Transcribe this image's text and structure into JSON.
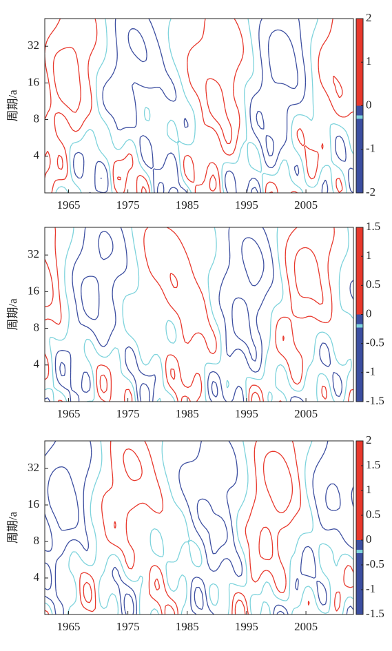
{
  "chart_data": [
    {
      "type": "contour",
      "ylabel": "周期/a",
      "xlim": [
        1961,
        2013
      ],
      "xticks": [
        1965,
        1975,
        1985,
        1995,
        2005
      ],
      "ylim": [
        2,
        54
      ],
      "yticks": [
        4,
        8,
        16,
        32
      ],
      "ylog": true,
      "clim": [
        -2,
        2
      ],
      "cticks": [
        -2,
        -1,
        0,
        1,
        2
      ],
      "colors": {
        "negative": "#3c4ea0",
        "zero": "#7dd3dc",
        "positive": "#e8382c"
      }
    },
    {
      "type": "contour",
      "ylabel": "周期/a",
      "xlim": [
        1961,
        2013
      ],
      "xticks": [
        1965,
        1975,
        1985,
        1995,
        2005
      ],
      "ylim": [
        2,
        54
      ],
      "yticks": [
        4,
        8,
        16,
        32
      ],
      "ylog": true,
      "clim": [
        -1.5,
        1.5
      ],
      "cticks": [
        -1.5,
        -1,
        -0.5,
        0,
        0.5,
        1,
        1.5
      ],
      "colors": {
        "negative": "#3c4ea0",
        "zero": "#7dd3dc",
        "positive": "#e8382c"
      }
    },
    {
      "type": "contour",
      "ylabel": "周期/a",
      "xlim": [
        1961,
        2013
      ],
      "xticks": [
        1965,
        1975,
        1985,
        1995,
        2005
      ],
      "ylim": [
        2,
        54
      ],
      "yticks": [
        4,
        8,
        16,
        32
      ],
      "ylog": true,
      "clim": [
        -1.5,
        2
      ],
      "cticks": [
        -1.5,
        -1,
        -0.5,
        0,
        0.5,
        1,
        1.5,
        2
      ],
      "colors": {
        "negative": "#3c4ea0",
        "zero": "#7dd3dc",
        "positive": "#e8382c"
      }
    }
  ]
}
